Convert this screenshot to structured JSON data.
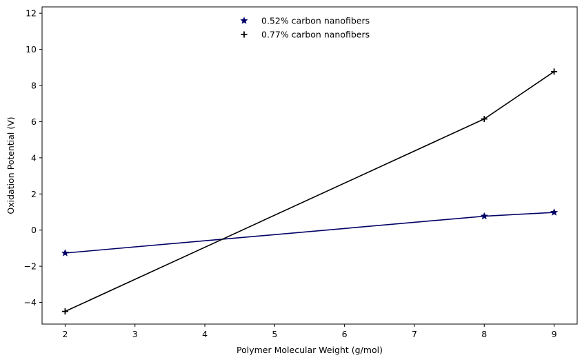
{
  "chart_data": {
    "type": "line",
    "title": "",
    "xlabel": "Polymer Molecular Weight (g/mol)",
    "ylabel": "Oxidation Potential (V)",
    "xlim": [
      1.67,
      9.33
    ],
    "ylim": [
      -5.2,
      12.35
    ],
    "xticks": [
      2,
      3,
      4,
      5,
      6,
      7,
      8,
      9
    ],
    "yticks": [
      -4,
      -2,
      0,
      2,
      4,
      6,
      8,
      10,
      12
    ],
    "grid": false,
    "legend": "top-center",
    "series": [
      {
        "name": "0.52% carbon nanofibers",
        "color": "#000066",
        "marker": "star",
        "x": [
          2,
          8,
          9
        ],
        "y": [
          -1.27,
          0.77,
          0.98
        ]
      },
      {
        "name": "0.77% carbon nanofibers",
        "color": "#000000",
        "marker": "plus",
        "x": [
          2,
          8,
          9
        ],
        "y": [
          -4.5,
          6.15,
          8.77
        ]
      }
    ]
  }
}
